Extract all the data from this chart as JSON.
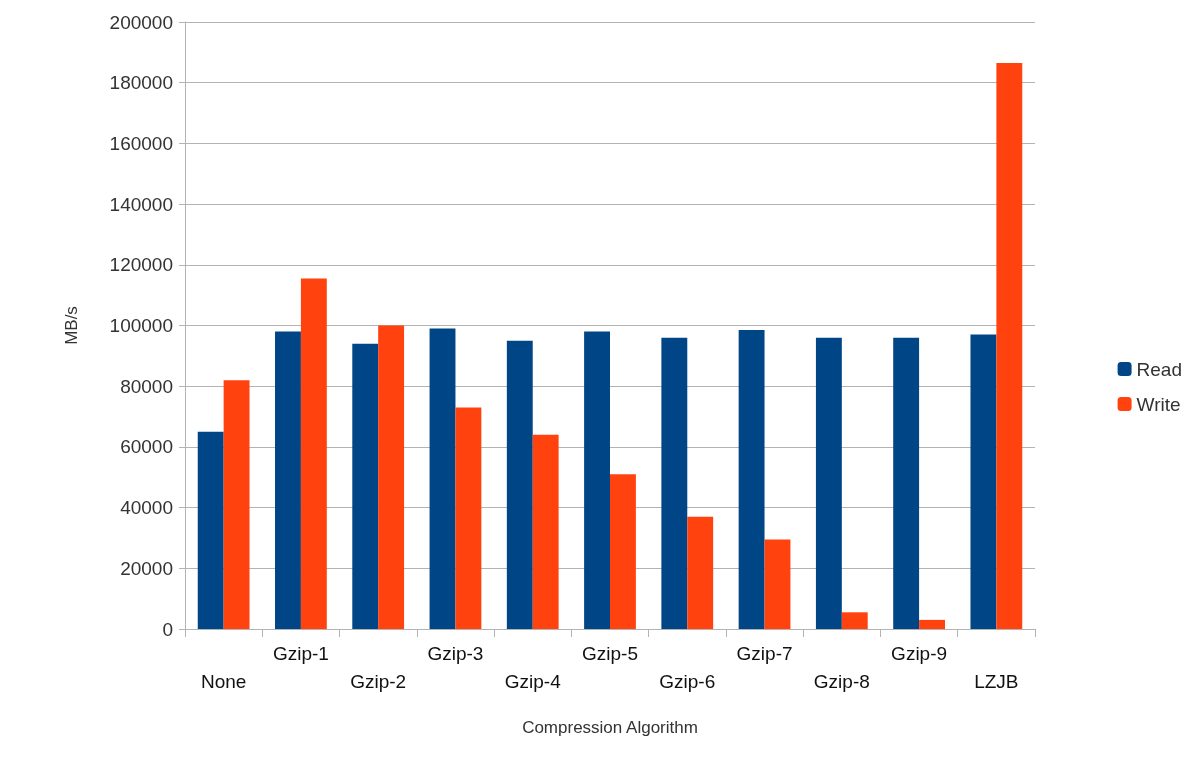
{
  "chart_data": {
    "type": "bar",
    "xlabel": "Compression Algorithm",
    "ylabel": "MB/s",
    "categories": [
      "None",
      "Gzip-1",
      "Gzip-2",
      "Gzip-3",
      "Gzip-4",
      "Gzip-5",
      "Gzip-6",
      "Gzip-7",
      "Gzip-8",
      "Gzip-9",
      "LZJB"
    ],
    "series": [
      {
        "name": "Read",
        "color": "#004586",
        "values": [
          65000,
          98000,
          94000,
          99000,
          95000,
          98000,
          96000,
          98500,
          96000,
          96000,
          97000
        ]
      },
      {
        "name": "Write",
        "color": "#ff420e",
        "values": [
          82000,
          115500,
          100000,
          73000,
          64000,
          51000,
          37000,
          29500,
          5500,
          3000,
          186500
        ]
      }
    ],
    "ylim": [
      0,
      200000
    ],
    "yticks": [
      0,
      20000,
      40000,
      60000,
      80000,
      100000,
      120000,
      140000,
      160000,
      180000,
      200000
    ],
    "grid": "y",
    "legend": "right"
  }
}
